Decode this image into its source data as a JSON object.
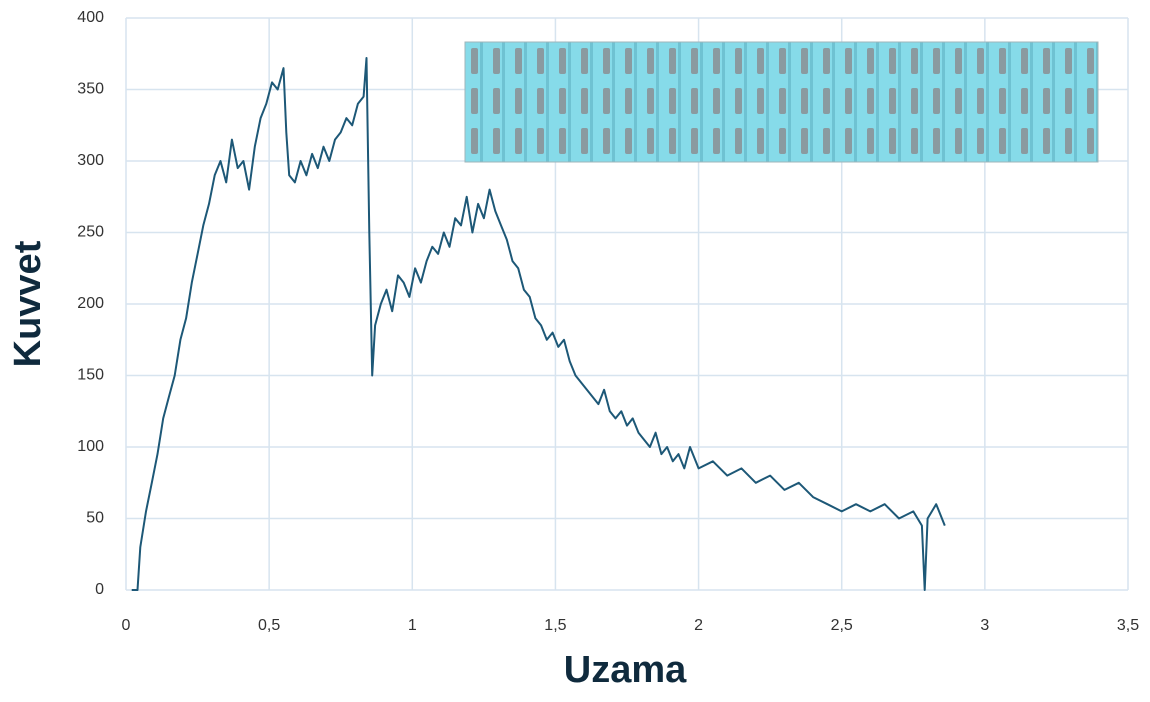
{
  "chart_data": {
    "type": "line",
    "x_label": "Uzama",
    "y_label": "Kuvvet",
    "color": "#1d5877",
    "grid": true,
    "xlim": [
      0,
      3.5
    ],
    "ylim": [
      0,
      400
    ],
    "xticks": [
      0,
      {
        "value": 0.5,
        "label": "0,5"
      },
      1,
      {
        "value": 1.5,
        "label": "1,5"
      },
      2,
      {
        "value": 2.5,
        "label": "2,5"
      },
      3,
      {
        "value": 3.5,
        "label": "3,5"
      }
    ],
    "yticks": [
      0,
      50,
      100,
      150,
      200,
      250,
      300,
      350,
      400
    ],
    "x": [
      0.02,
      0.04,
      0.05,
      0.07,
      0.09,
      0.11,
      0.13,
      0.15,
      0.17,
      0.19,
      0.21,
      0.23,
      0.25,
      0.27,
      0.29,
      0.31,
      0.33,
      0.35,
      0.37,
      0.39,
      0.41,
      0.43,
      0.45,
      0.47,
      0.49,
      0.51,
      0.53,
      0.55,
      0.56,
      0.57,
      0.59,
      0.61,
      0.63,
      0.65,
      0.67,
      0.69,
      0.71,
      0.73,
      0.75,
      0.77,
      0.79,
      0.81,
      0.83,
      0.84,
      0.85,
      0.86,
      0.87,
      0.89,
      0.91,
      0.93,
      0.95,
      0.97,
      0.99,
      1.01,
      1.03,
      1.05,
      1.07,
      1.09,
      1.11,
      1.13,
      1.15,
      1.17,
      1.19,
      1.21,
      1.23,
      1.25,
      1.27,
      1.29,
      1.31,
      1.33,
      1.35,
      1.37,
      1.39,
      1.41,
      1.43,
      1.45,
      1.47,
      1.49,
      1.51,
      1.53,
      1.55,
      1.57,
      1.59,
      1.61,
      1.63,
      1.65,
      1.67,
      1.69,
      1.71,
      1.73,
      1.75,
      1.77,
      1.79,
      1.81,
      1.83,
      1.85,
      1.87,
      1.89,
      1.91,
      1.93,
      1.95,
      1.97,
      2.0,
      2.05,
      2.1,
      2.15,
      2.2,
      2.25,
      2.3,
      2.35,
      2.4,
      2.45,
      2.5,
      2.55,
      2.6,
      2.65,
      2.7,
      2.75,
      2.78,
      2.79,
      2.8,
      2.83,
      2.86
    ],
    "values": [
      0,
      0,
      30,
      55,
      75,
      95,
      120,
      135,
      150,
      175,
      190,
      215,
      235,
      255,
      270,
      290,
      300,
      285,
      315,
      295,
      300,
      280,
      310,
      330,
      340,
      355,
      350,
      365,
      320,
      290,
      285,
      300,
      290,
      305,
      295,
      310,
      300,
      315,
      320,
      330,
      325,
      340,
      345,
      372,
      250,
      150,
      185,
      200,
      210,
      195,
      220,
      215,
      205,
      225,
      215,
      230,
      240,
      235,
      250,
      240,
      260,
      255,
      275,
      250,
      270,
      260,
      280,
      265,
      255,
      245,
      230,
      225,
      210,
      205,
      190,
      185,
      175,
      180,
      170,
      175,
      160,
      150,
      145,
      140,
      135,
      130,
      140,
      125,
      120,
      125,
      115,
      120,
      110,
      105,
      100,
      110,
      95,
      100,
      90,
      95,
      85,
      100,
      85,
      90,
      80,
      85,
      75,
      80,
      70,
      75,
      65,
      60,
      55,
      60,
      55,
      60,
      50,
      55,
      45,
      0,
      50,
      60,
      45
    ]
  }
}
